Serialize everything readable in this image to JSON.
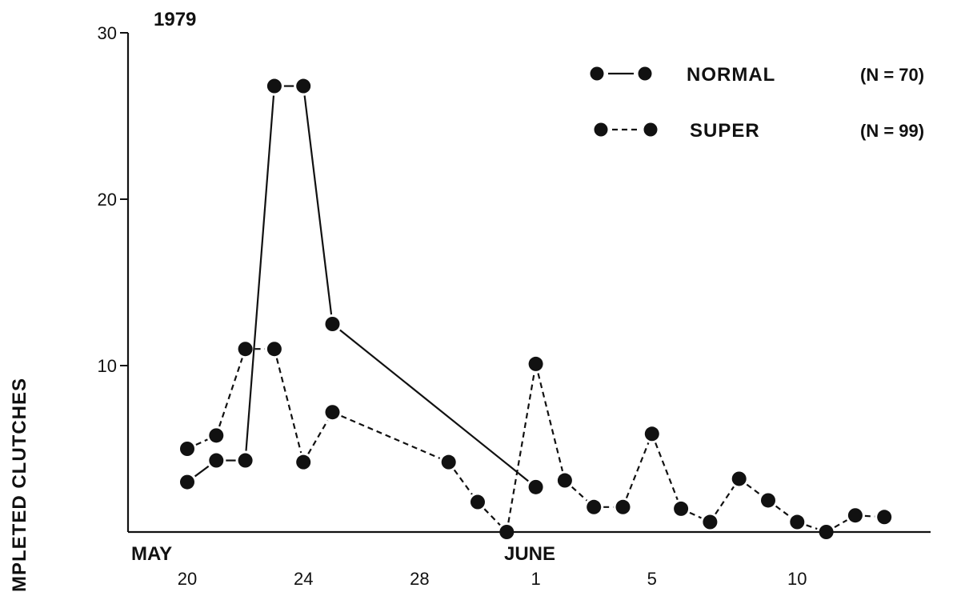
{
  "chart_data": {
    "type": "line",
    "title": "1979",
    "ylabel": "MPLETED CLUTCHES",
    "month_labels": [
      "MAY",
      "JUNE"
    ],
    "x_ticks": [
      {
        "day": 20,
        "label": "20"
      },
      {
        "day": 24,
        "label": "24"
      },
      {
        "day": 28,
        "label": "28"
      },
      {
        "day": 32,
        "label": "1"
      },
      {
        "day": 36,
        "label": "5"
      },
      {
        "day": 41,
        "label": "10"
      }
    ],
    "y_ticks": [
      {
        "value": 10,
        "label": "10"
      },
      {
        "value": 20,
        "label": "20"
      },
      {
        "value": 30,
        "label": "30"
      }
    ],
    "xlim": [
      18,
      44.5
    ],
    "ylim": [
      0,
      30
    ],
    "series": [
      {
        "name": "NORMAL",
        "n_label": "(N = 70)",
        "style": "solid",
        "points": [
          [
            20,
            3
          ],
          [
            21,
            4.3
          ],
          [
            22,
            4.3
          ],
          [
            23,
            26.8
          ],
          [
            24,
            26.8
          ],
          [
            25,
            12.5
          ],
          [
            32,
            2.7
          ]
        ]
      },
      {
        "name": "SUPER",
        "n_label": "(N = 99)",
        "style": "dashed",
        "points": [
          [
            20,
            5
          ],
          [
            21,
            5.8
          ],
          [
            22,
            11
          ],
          [
            23,
            11
          ],
          [
            24,
            4.2
          ],
          [
            25,
            7.2
          ],
          [
            29,
            4.2
          ],
          [
            30,
            1.8
          ],
          [
            31,
            0
          ],
          [
            32,
            10.1
          ],
          [
            33,
            3.1
          ],
          [
            34,
            1.5
          ],
          [
            35,
            1.5
          ],
          [
            36,
            5.9
          ],
          [
            37,
            1.4
          ],
          [
            38,
            0.6
          ],
          [
            39,
            3.2
          ],
          [
            40,
            1.9
          ],
          [
            41,
            0.6
          ],
          [
            42,
            0
          ],
          [
            43,
            1
          ],
          [
            44,
            0.9
          ]
        ]
      }
    ],
    "grid": false,
    "legend_position": "top-right"
  }
}
